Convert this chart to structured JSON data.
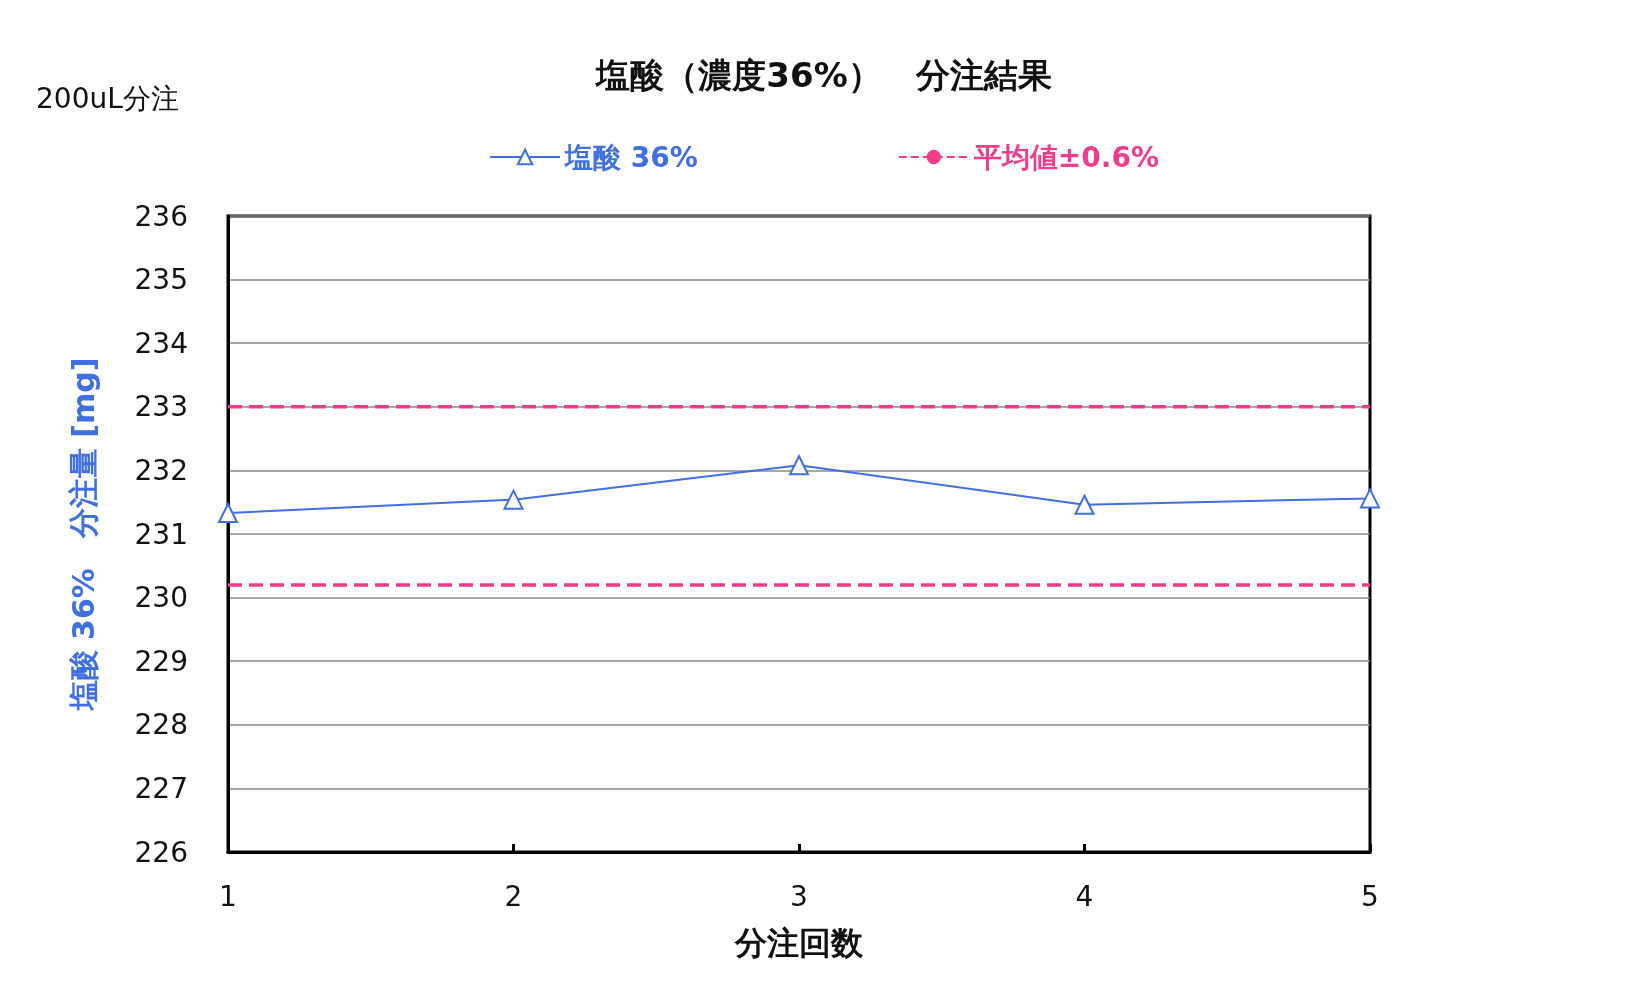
{
  "chart_data": {
    "type": "line",
    "title": "塩酸（濃度36%）　分注結果",
    "xlabel": "分注回数",
    "ylabel": "塩酸 36%　分注量 [mg]",
    "annotations": [
      "200uL分注"
    ],
    "x": [
      1,
      2,
      3,
      4,
      5
    ],
    "series": [
      {
        "name": "塩酸 36%",
        "color": "#3f6fe0",
        "values": [
          231.33,
          231.54,
          232.08,
          231.46,
          231.56
        ]
      }
    ],
    "xlim": [
      1,
      5
    ],
    "xticks": [
      1,
      2,
      3,
      4,
      5
    ],
    "ylim": [
      226,
      236
    ],
    "yticks": [
      226,
      227,
      228,
      229,
      230,
      231,
      232,
      233,
      234,
      235,
      236
    ],
    "ref_lines": [
      {
        "axis": "y",
        "value": 233.0,
        "label": "平均値±0.6%",
        "color": "#f03c8c",
        "line_style": "dashed"
      },
      {
        "axis": "y",
        "value": 230.2,
        "color": "#f03c8c",
        "line_style": "dashed"
      }
    ],
    "grid": "y",
    "legend": "top",
    "marker": "triangle",
    "line_style": "solid"
  }
}
